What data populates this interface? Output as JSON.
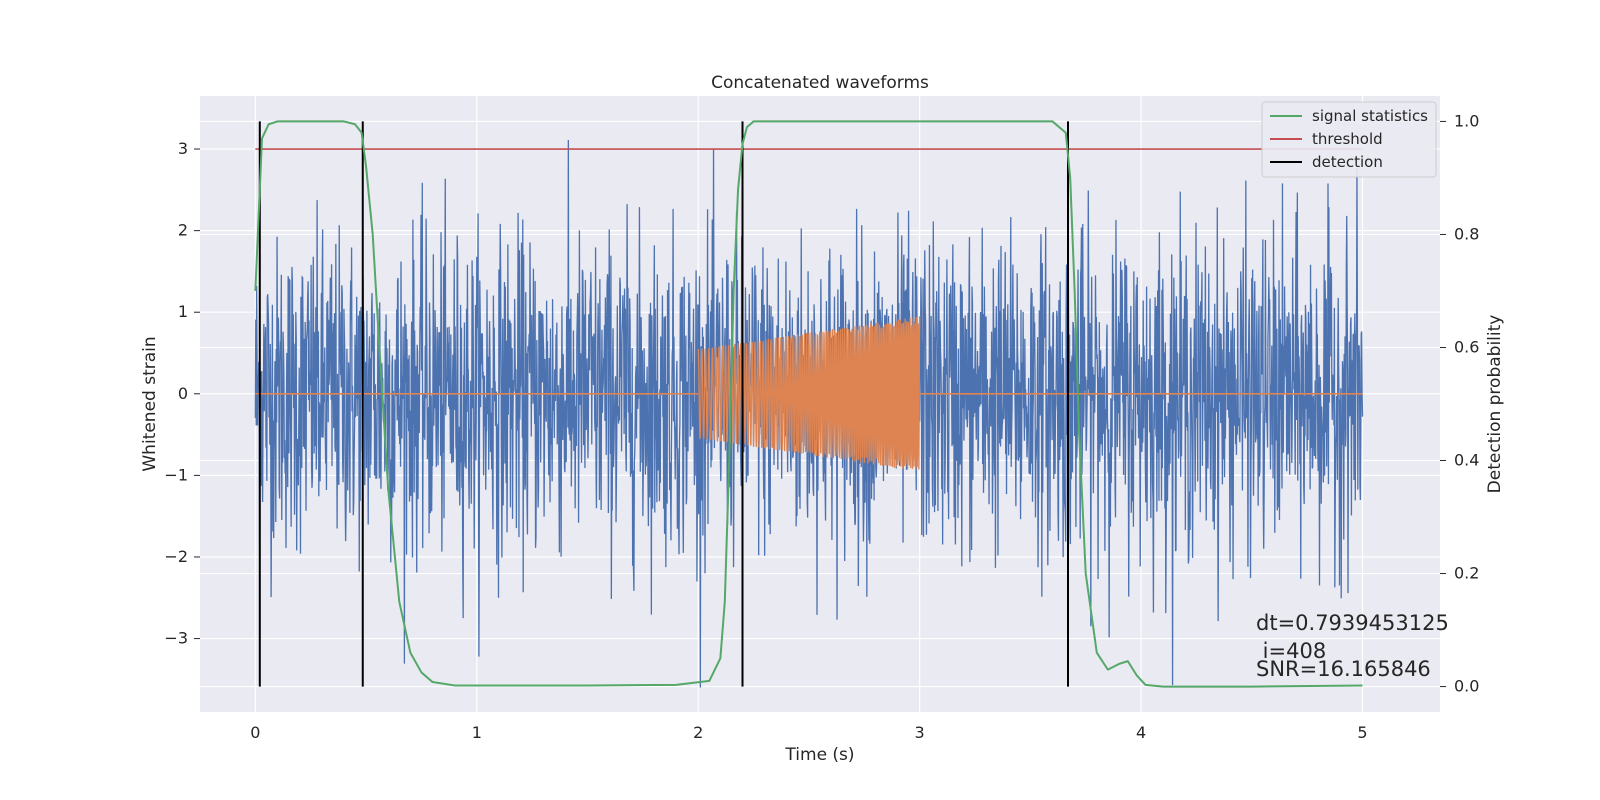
{
  "chart_data": {
    "type": "line",
    "title": "Concatenated waveforms",
    "xlabel": "Time (s)",
    "ylabel": "Whitened strain",
    "y2label": "Detection probability",
    "xlim": [
      -0.25,
      5.35
    ],
    "ylim": [
      -3.9,
      3.65
    ],
    "y2lim": [
      -0.045,
      1.045
    ],
    "xticks": [
      0,
      1,
      2,
      3,
      4,
      5
    ],
    "yticks": [
      -3,
      -2,
      -1,
      0,
      1,
      2,
      3
    ],
    "y2ticks": [
      0.0,
      0.2,
      0.4,
      0.6,
      0.8,
      1.0
    ],
    "xtick_labels": [
      "0",
      "1",
      "2",
      "3",
      "4",
      "5"
    ],
    "ytick_labels": [
      "−3",
      "−2",
      "−1",
      "0",
      "1",
      "2",
      "3"
    ],
    "y2tick_labels": [
      "0.0",
      "0.2",
      "0.4",
      "0.6",
      "0.8",
      "1.0"
    ],
    "grid": true,
    "legend_position": "top-right",
    "colors": {
      "strain": "#4c72b0",
      "template": "#dd8452",
      "signal_statistics": "#55a868",
      "threshold": "#c44e52",
      "detection": "#000000",
      "background": "#eaeaf2",
      "grid": "#ffffff"
    },
    "series": [
      {
        "name": "",
        "color": "#4c72b0",
        "axis": "left",
        "description_values": "whitened noise strain sampled over 0-5 s, amplitude roughly within -3.6 to 3.3",
        "x_range": [
          0,
          5
        ],
        "peak_values": [
          3.3,
          -3.6
        ]
      },
      {
        "name": "",
        "color": "#dd8452",
        "axis": "left",
        "x_range": [
          0,
          5
        ],
        "chirp_start": 2.0,
        "chirp_end": 3.0,
        "chirp_amplitude_start": 0.55,
        "chirp_amplitude_end": 0.95
      },
      {
        "name": "signal statistics",
        "color": "#55a868",
        "axis": "right",
        "x": [
          0.0,
          0.03,
          0.06,
          0.1,
          0.2,
          0.3,
          0.4,
          0.45,
          0.48,
          0.5,
          0.53,
          0.56,
          0.6,
          0.65,
          0.7,
          0.75,
          0.8,
          0.9,
          1.5,
          1.9,
          2.05,
          2.1,
          2.12,
          2.14,
          2.16,
          2.18,
          2.2,
          2.22,
          2.25,
          2.3,
          2.4,
          3.0,
          3.6,
          3.66,
          3.68,
          3.7,
          3.72,
          3.75,
          3.8,
          3.85,
          3.9,
          3.94,
          3.98,
          4.02,
          4.1,
          4.5,
          5.0
        ],
        "y": [
          0.7,
          0.97,
          0.995,
          1.0,
          1.0,
          1.0,
          1.0,
          0.995,
          0.98,
          0.92,
          0.8,
          0.6,
          0.35,
          0.15,
          0.06,
          0.025,
          0.008,
          0.002,
          0.002,
          0.003,
          0.01,
          0.05,
          0.15,
          0.4,
          0.7,
          0.88,
          0.96,
          0.99,
          1.0,
          1.0,
          1.0,
          1.0,
          1.0,
          0.98,
          0.9,
          0.7,
          0.45,
          0.2,
          0.06,
          0.03,
          0.04,
          0.045,
          0.02,
          0.003,
          0.0,
          0.0,
          0.002
        ]
      },
      {
        "name": "threshold",
        "color": "#c44e52",
        "axis": "left",
        "x": [
          0,
          5
        ],
        "y": [
          3.0,
          3.0
        ]
      },
      {
        "name": "detection",
        "color": "#000000",
        "axis": "right",
        "vlines_x": [
          0.02,
          0.485,
          2.2,
          3.67
        ],
        "ymin": 0.0,
        "ymax": 1.0
      }
    ],
    "annotations": [
      "dt=0.7939453125",
      " i=408",
      "SNR=16.165846"
    ]
  }
}
